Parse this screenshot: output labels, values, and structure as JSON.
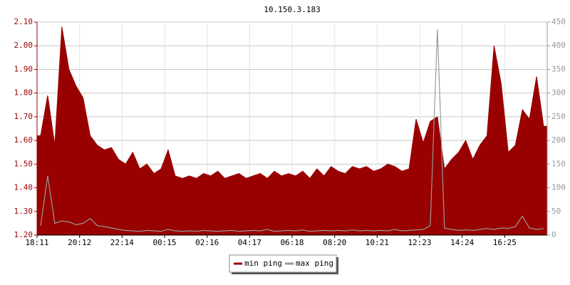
{
  "chart_data": {
    "type": "line",
    "title": "10.150.3.183",
    "categories": [
      "18:11",
      null,
      null,
      null,
      null,
      null,
      "20:12",
      null,
      null,
      null,
      null,
      null,
      "22:14",
      null,
      null,
      null,
      null,
      null,
      "00:15",
      null,
      null,
      null,
      null,
      null,
      "02:16",
      null,
      null,
      null,
      null,
      null,
      "04:17",
      null,
      null,
      null,
      null,
      null,
      "06:18",
      null,
      null,
      null,
      null,
      null,
      "08:20",
      null,
      null,
      null,
      null,
      null,
      "10:21",
      null,
      null,
      null,
      null,
      null,
      "12:23",
      null,
      null,
      null,
      null,
      null,
      "14:24",
      null,
      null,
      null,
      null,
      null,
      "16:25",
      null,
      null,
      null,
      null,
      null
    ],
    "series": [
      {
        "name": "min ping",
        "color": "#990000",
        "area": true,
        "axis": "y",
        "values": [
          1.62,
          1.79,
          1.58,
          2.08,
          1.9,
          1.83,
          1.78,
          1.62,
          1.58,
          1.56,
          1.57,
          1.52,
          1.5,
          1.55,
          1.48,
          1.5,
          1.46,
          1.48,
          1.56,
          1.45,
          1.44,
          1.45,
          1.44,
          1.46,
          1.45,
          1.47,
          1.44,
          1.45,
          1.46,
          1.44,
          1.45,
          1.46,
          1.44,
          1.47,
          1.45,
          1.46,
          1.45,
          1.47,
          1.44,
          1.48,
          1.45,
          1.49,
          1.47,
          1.46,
          1.49,
          1.48,
          1.49,
          1.47,
          1.48,
          1.5,
          1.49,
          1.47,
          1.48,
          1.69,
          1.59,
          1.68,
          1.7,
          1.48,
          1.52,
          1.55,
          1.6,
          1.52,
          1.58,
          1.62,
          2.0,
          1.84,
          1.55,
          1.58,
          1.73,
          1.69,
          1.87,
          1.66
        ]
      },
      {
        "name": "max ping",
        "color": "#999999",
        "area": false,
        "axis": "y2",
        "values": [
          20,
          125,
          25,
          30,
          28,
          22,
          25,
          35,
          20,
          18,
          15,
          12,
          10,
          9,
          8,
          10,
          9,
          8,
          12,
          9,
          8,
          9,
          8,
          10,
          9,
          8,
          9,
          10,
          8,
          9,
          10,
          9,
          12,
          8,
          9,
          10,
          9,
          11,
          8,
          9,
          10,
          9,
          10,
          9,
          11,
          9,
          10,
          9,
          10,
          9,
          12,
          9,
          10,
          11,
          12,
          20,
          435,
          15,
          12,
          10,
          11,
          10,
          12,
          14,
          12,
          15,
          14,
          18,
          40,
          15,
          12,
          14
        ]
      }
    ],
    "ylim": [
      1.2,
      2.1
    ],
    "yticks": [
      {
        "value": 1.2,
        "label": "1.20"
      },
      {
        "value": 1.3,
        "label": "1.30"
      },
      {
        "value": 1.4,
        "label": "1.40"
      },
      {
        "value": 1.5,
        "label": "1.50"
      },
      {
        "value": 1.6,
        "label": "1.60"
      },
      {
        "value": 1.7,
        "label": "1.70"
      },
      {
        "value": 1.8,
        "label": "1.80"
      },
      {
        "value": 1.9,
        "label": "1.90"
      },
      {
        "value": 2.0,
        "label": "2.00"
      },
      {
        "value": 2.1,
        "label": "2.10"
      }
    ],
    "y2lim": [
      0,
      450
    ],
    "y2ticks": [
      0,
      50,
      100,
      150,
      200,
      250,
      300,
      350,
      400,
      450
    ],
    "grid": true,
    "legend": "bottom"
  }
}
